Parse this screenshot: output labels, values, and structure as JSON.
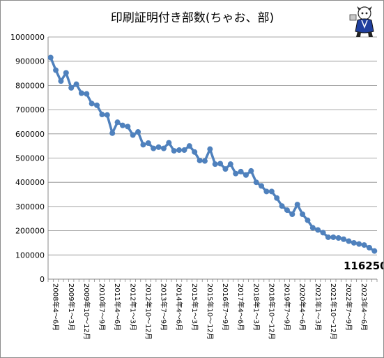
{
  "chart_data": {
    "type": "line",
    "title": "印刷証明付き部数(ちゃお、部)",
    "xlabel": "",
    "ylabel": "",
    "ylim": [
      0,
      1000000
    ],
    "yticks": [
      0,
      100000,
      200000,
      300000,
      400000,
      500000,
      600000,
      700000,
      800000,
      900000,
      1000000
    ],
    "grid": true,
    "legend": "none",
    "x_tick_labels": [
      "2008年4〜6月",
      "2009年1〜3月",
      "2009年10〜12月",
      "2010年7〜9月",
      "2011年4〜6月",
      "2012年1〜3月",
      "2012年10〜12月",
      "2013年7〜9月",
      "2014年4〜6月",
      "2015年1〜3月",
      "2015年10〜12月",
      "2016年7〜9月",
      "2017年4〜6月",
      "2018年1〜3月",
      "2018年10〜12月",
      "2019年7〜9月",
      "2020年4〜6月",
      "2021年1〜3月",
      "2021年10〜12月",
      "2022年7〜9月",
      "2023年4〜6月"
    ],
    "x_tick_every": 3,
    "last_label": "116250",
    "series_color": "#4f81bd",
    "series": [
      {
        "values": [
          915000,
          863000,
          818000,
          852000,
          790000,
          805000,
          768000,
          765000,
          725000,
          718000,
          680000,
          678000,
          603000,
          648000,
          635000,
          630000,
          595000,
          608000,
          555000,
          562000,
          540000,
          545000,
          540000,
          563000,
          530000,
          533000,
          533000,
          550000,
          525000,
          490000,
          488000,
          537000,
          475000,
          477000,
          455000,
          475000,
          436000,
          444000,
          430000,
          447000,
          400000,
          385000,
          362000,
          362000,
          335000,
          302000,
          285000,
          268000,
          308000,
          268000,
          243000,
          212000,
          203000,
          192000,
          173000,
          173000,
          170000,
          165000,
          157000,
          150000,
          145000,
          141000,
          130000,
          116250
        ]
      }
    ]
  }
}
